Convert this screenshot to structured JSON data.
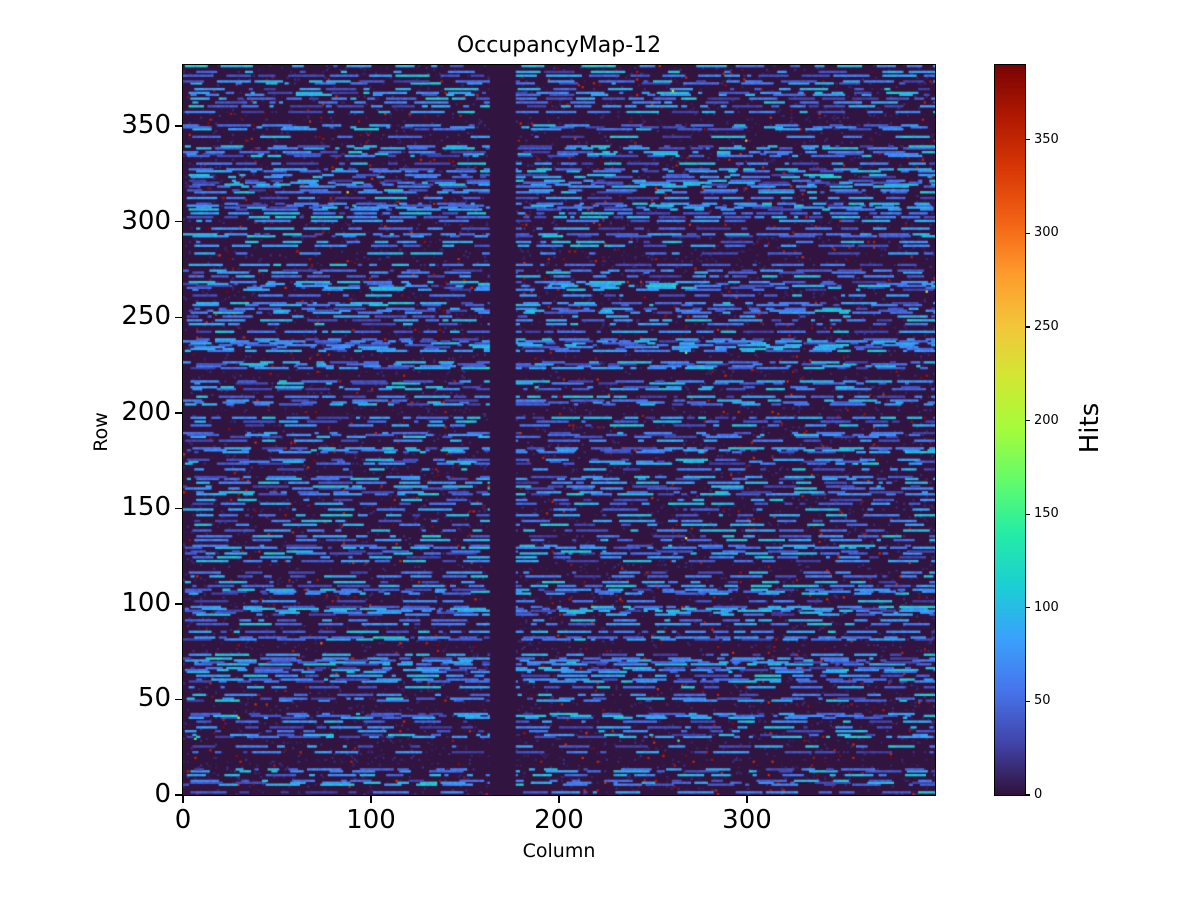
{
  "chart_data": {
    "type": "heatmap",
    "title": "OccupancyMap-12",
    "xlabel": "Column",
    "ylabel": "Row",
    "colorbar_label": "Hits",
    "x_range": [
      0,
      400
    ],
    "y_range": [
      0,
      382
    ],
    "value_range": [
      0,
      390
    ],
    "x_ticks": [
      0,
      100,
      200,
      300
    ],
    "y_ticks": [
      0,
      50,
      100,
      150,
      200,
      250,
      300,
      350
    ],
    "colorbar_ticks": [
      0,
      50,
      100,
      150,
      200,
      250,
      300,
      350
    ],
    "colormap": "turbo",
    "colormap_stops": [
      "#30123b",
      "#4145ab",
      "#4675ed",
      "#39a2fc",
      "#1bcfd4",
      "#24eca6",
      "#61fc6c",
      "#a4fc3b",
      "#d1e834",
      "#f3c63a",
      "#fe9b2d",
      "#f36315",
      "#d93806",
      "#b11901",
      "#7a0403"
    ],
    "background_color": "#ffffff",
    "grid": false,
    "legend": "colorbar-right",
    "pattern": {
      "description": "Mostly near-zero dark background with sparse horizontal dash streaks of low hit values (roughly 25-110 hits, blue tones), scattered single-pixel dark-red high-occupancy speckles near the maximum, rare isolated mid/high bright dots, and a fully dead (zero-hit) vertical column band.",
      "background_value": 1,
      "streak_value_range": [
        25,
        110
      ],
      "speckle_value_range": [
        340,
        390
      ],
      "dead_column_band": [
        163,
        177
      ],
      "streak_row_probability": 0.4,
      "seed": 12
    }
  }
}
